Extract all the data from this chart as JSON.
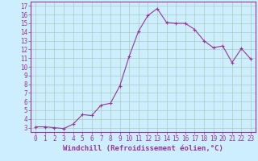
{
  "x_data": [
    0,
    1,
    2,
    3,
    4,
    5,
    6,
    7,
    8,
    9,
    10,
    11,
    12,
    13,
    14,
    15,
    16,
    17,
    18,
    19,
    20,
    21,
    22,
    23
  ],
  "y_data": [
    3.1,
    3.1,
    3.0,
    2.9,
    3.4,
    4.5,
    4.4,
    5.6,
    5.8,
    7.8,
    11.2,
    14.1,
    15.9,
    16.7,
    15.1,
    15.0,
    15.0,
    14.3,
    13.0,
    12.2,
    12.4,
    10.5,
    12.1,
    10.9
  ],
  "line_color": "#993399",
  "marker": "+",
  "bg_color": "#cceeff",
  "grid_color": "#aaccbb",
  "axis_color": "#993399",
  "xlabel": "Windchill (Refroidissement éolien,°C)",
  "xlabel_fontsize": 6.5,
  "tick_fontsize": 5.5,
  "ylim_min": 2.5,
  "ylim_max": 17.5,
  "xlim_min": -0.5,
  "xlim_max": 23.5,
  "yticks": [
    3,
    4,
    5,
    6,
    7,
    8,
    9,
    10,
    11,
    12,
    13,
    14,
    15,
    16,
    17
  ],
  "xticks": [
    0,
    1,
    2,
    3,
    4,
    5,
    6,
    7,
    8,
    9,
    10,
    11,
    12,
    13,
    14,
    15,
    16,
    17,
    18,
    19,
    20,
    21,
    22,
    23
  ]
}
